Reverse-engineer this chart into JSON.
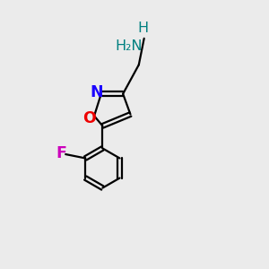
{
  "background_color": "#ebebeb",
  "figsize": [
    3.0,
    3.0
  ],
  "dpi": 100,
  "bond_lw": 1.6,
  "bond_color": "#000000",
  "atom_labels": {
    "NH2": {
      "color": "#008080",
      "fontsize": 11.5
    },
    "H": {
      "color": "#008080",
      "fontsize": 11.5
    },
    "N": {
      "color": "#1a00ff",
      "fontsize": 12.5
    },
    "O": {
      "color": "#ee0000",
      "fontsize": 12.5
    },
    "F": {
      "color": "#cc00bb",
      "fontsize": 12.5
    }
  }
}
